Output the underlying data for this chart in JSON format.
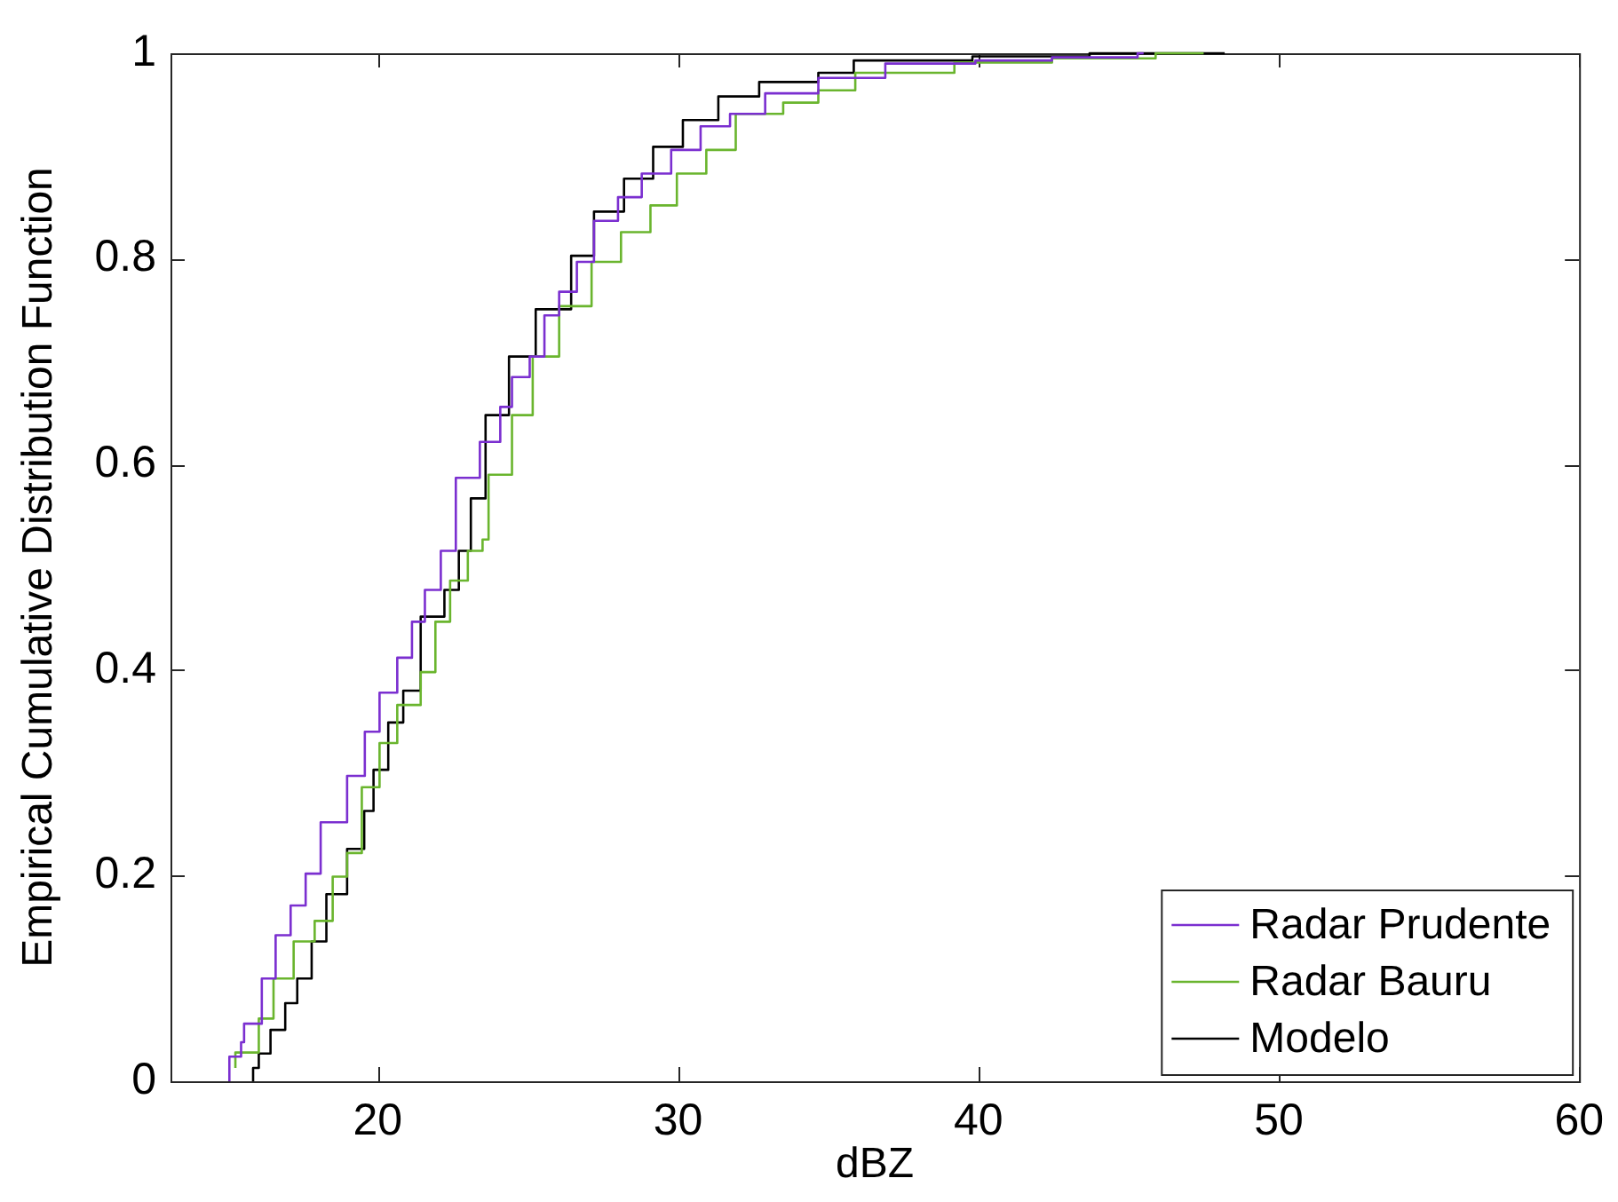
{
  "chart_data": {
    "type": "step",
    "xlabel": "dBZ",
    "ylabel": "Empirical Cumulative Distribution Function",
    "xlim": [
      13.1,
      60
    ],
    "xticks": [
      20,
      30,
      40,
      50,
      60
    ],
    "ylim": [
      0,
      1
    ],
    "yticks": [
      0,
      0.2,
      0.4,
      0.6,
      0.8,
      1
    ],
    "grid": false,
    "legend": "bottom right",
    "line_style": "solid",
    "marker": "none",
    "series": [
      {
        "name": "Radar Prudente",
        "color": "#7b2fd0",
        "x": [
          15.06,
          15.45,
          15.55,
          16.14,
          16.6,
          17.1,
          17.6,
          18.1,
          18.98,
          19.57,
          20.06,
          20.65,
          21.14,
          21.57,
          22.1,
          22.6,
          23.4,
          24.08,
          24.47,
          25.06,
          25.55,
          26.04,
          26.63,
          27.2,
          28.0,
          28.79,
          29.77,
          30.75,
          31.73,
          32.9,
          34.67,
          36.9,
          39.9,
          42.45,
          45.3,
          45.5
        ],
        "values": [
          0,
          0.024,
          0.038,
          0.056,
          0.1,
          0.142,
          0.171,
          0.202,
          0.252,
          0.297,
          0.34,
          0.378,
          0.412,
          0.447,
          0.478,
          0.516,
          0.587,
          0.622,
          0.656,
          0.685,
          0.705,
          0.745,
          0.768,
          0.797,
          0.837,
          0.86,
          0.883,
          0.906,
          0.929,
          0.941,
          0.961,
          0.976,
          0.99,
          0.993,
          0.996,
          1
        ]
      },
      {
        "name": "Radar Bauru",
        "color": "#6ab52e",
        "x": [
          15.26,
          16.04,
          16.53,
          17.2,
          17.9,
          18.5,
          18.98,
          19.47,
          20.06,
          20.65,
          21.43,
          21.92,
          22.41,
          23.0,
          23.49,
          23.69,
          24.47,
          25.16,
          26.04,
          27.12,
          28.1,
          29.08,
          29.96,
          30.94,
          31.92,
          33.5,
          34.67,
          35.9,
          39.2,
          42.45,
          45.9,
          47.5
        ],
        "values": [
          0.013,
          0.028,
          0.061,
          0.1,
          0.136,
          0.156,
          0.199,
          0.222,
          0.286,
          0.329,
          0.366,
          0.398,
          0.447,
          0.487,
          0.516,
          0.527,
          0.59,
          0.648,
          0.705,
          0.754,
          0.797,
          0.826,
          0.852,
          0.883,
          0.906,
          0.941,
          0.952,
          0.964,
          0.981,
          0.991,
          0.995,
          1
        ]
      },
      {
        "name": "Modelo",
        "color": "#000000",
        "x": [
          15.85,
          16.04,
          16.43,
          16.92,
          17.32,
          17.8,
          18.29,
          18.98,
          19.55,
          19.86,
          20.35,
          20.85,
          21.43,
          22.22,
          22.7,
          23.1,
          23.59,
          24.37,
          25.26,
          26.44,
          27.2,
          28.2,
          29.17,
          30.16,
          31.34,
          32.7,
          34.67,
          35.85,
          39.8,
          43.7,
          48.2
        ],
        "values": [
          0,
          0.013,
          0.027,
          0.05,
          0.076,
          0.1,
          0.136,
          0.182,
          0.226,
          0.263,
          0.303,
          0.349,
          0.38,
          0.452,
          0.478,
          0.516,
          0.567,
          0.648,
          0.705,
          0.751,
          0.803,
          0.846,
          0.878,
          0.909,
          0.935,
          0.958,
          0.972,
          0.981,
          0.993,
          0.997,
          1
        ]
      }
    ]
  }
}
